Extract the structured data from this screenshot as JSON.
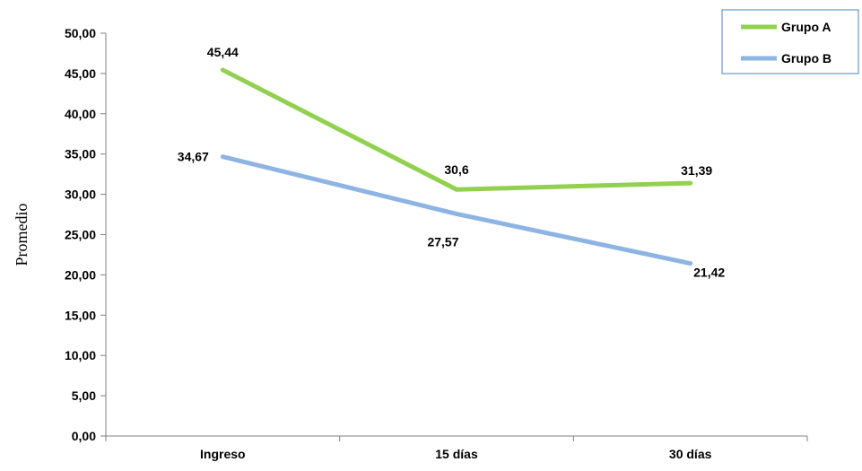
{
  "chart_data": {
    "type": "line",
    "categories": [
      "Ingreso",
      "15 días",
      "30 días"
    ],
    "series": [
      {
        "name": "Grupo A",
        "color": "#92d050",
        "values": [
          45.44,
          30.6,
          31.39
        ],
        "labels": [
          "45,44",
          "30,6",
          "31,39"
        ]
      },
      {
        "name": "Grupo B",
        "color": "#8eb4e3",
        "values": [
          34.67,
          27.57,
          21.42
        ],
        "labels": [
          "34,67",
          "27,57",
          "21,42"
        ]
      }
    ],
    "ylabel": "Promedio",
    "ylim": [
      0,
      50
    ],
    "yticks": [
      0,
      5,
      10,
      15,
      20,
      25,
      30,
      35,
      40,
      45,
      50
    ],
    "ytick_labels": [
      "0,00",
      "5,00",
      "10,00",
      "15,00",
      "20,00",
      "25,00",
      "30,00",
      "35,00",
      "40,00",
      "45,00",
      "50,00"
    ],
    "grid": false,
    "legend": "top-right",
    "legend_border_color": "#4f81bd"
  }
}
